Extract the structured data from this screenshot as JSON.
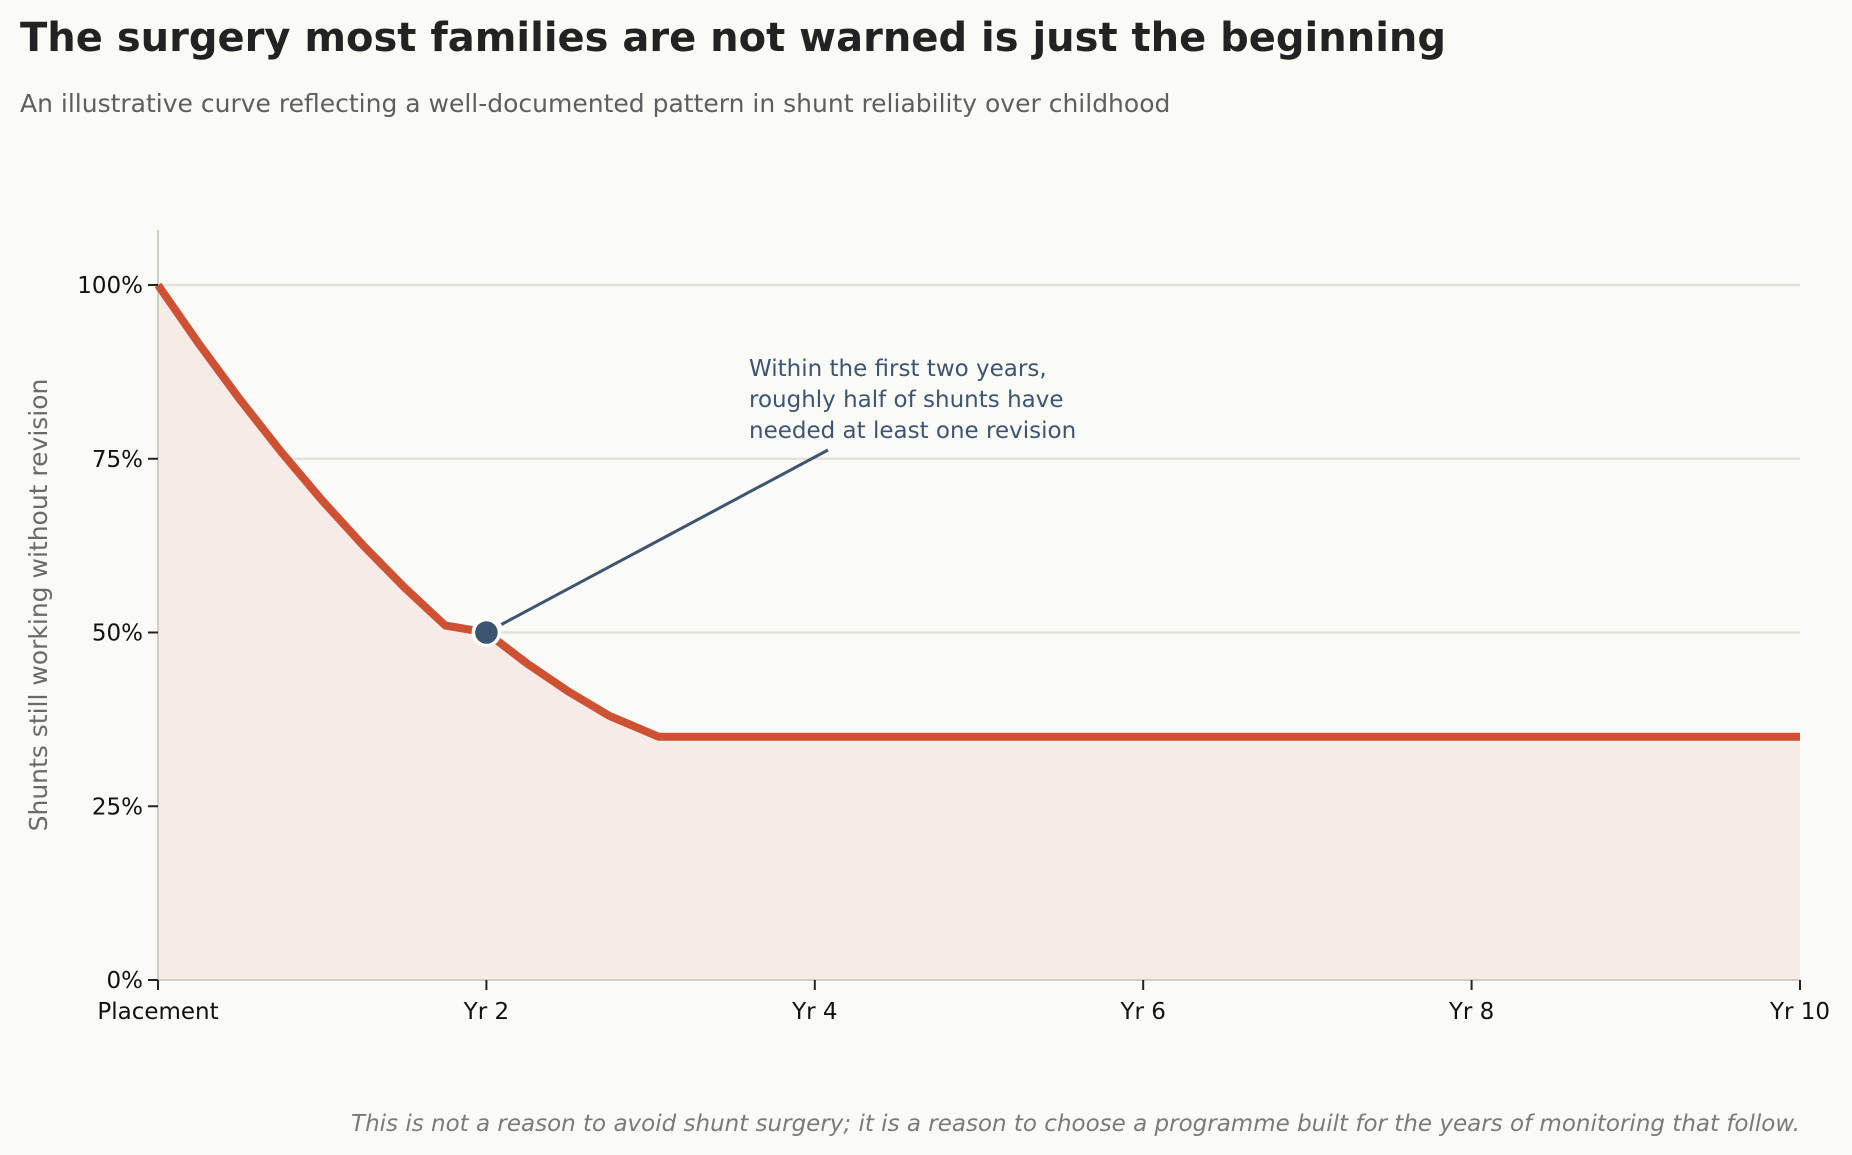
{
  "title": "The surgery most families are not warned is just the beginning",
  "subtitle": "An illustrative curve reflecting a well-documented pattern in shunt reliability over childhood",
  "footnote": "This is not a reason to avoid shunt surgery; it is a reason to choose a programme built for the years of monitoring that follow.",
  "colors": {
    "line": "#cd5132",
    "fill": "#f6ebe6",
    "grid": "#e3e1dc",
    "marker": "#3d5570",
    "axis": "#cfcdc7"
  },
  "chart_data": {
    "type": "area",
    "xlabel": "",
    "ylabel": "Shunts still working without revision",
    "xlim": [
      0,
      10
    ],
    "ylim": [
      0,
      1.08
    ],
    "x_ticks": [
      {
        "value": 0,
        "label": "Placement"
      },
      {
        "value": 2,
        "label": "Yr 2"
      },
      {
        "value": 4,
        "label": "Yr 4"
      },
      {
        "value": 6,
        "label": "Yr 6"
      },
      {
        "value": 8,
        "label": "Yr 8"
      },
      {
        "value": 10,
        "label": "Yr 10"
      }
    ],
    "y_ticks": [
      {
        "value": 0,
        "label": "0%"
      },
      {
        "value": 0.25,
        "label": "25%"
      },
      {
        "value": 0.5,
        "label": "50%"
      },
      {
        "value": 0.75,
        "label": "75%"
      },
      {
        "value": 1.0,
        "label": "100%"
      }
    ],
    "grid": true,
    "series": [
      {
        "x": [
          0,
          0.25,
          0.5,
          0.75,
          1.0,
          1.25,
          1.5,
          1.75,
          2.0,
          2.25,
          2.5,
          2.75,
          3.05,
          4,
          5,
          6,
          7,
          8,
          9,
          10
        ],
        "y": [
          1.0,
          0.915,
          0.835,
          0.76,
          0.69,
          0.625,
          0.565,
          0.51,
          0.5,
          0.455,
          0.415,
          0.38,
          0.35,
          0.35,
          0.35,
          0.35,
          0.35,
          0.35,
          0.35,
          0.35
        ]
      }
    ],
    "highlight": {
      "x": 2,
      "y": 0.5
    },
    "annotation": {
      "lines": [
        "Within the first two years,",
        "roughly half of shunts have",
        "needed at least one revision"
      ]
    }
  }
}
